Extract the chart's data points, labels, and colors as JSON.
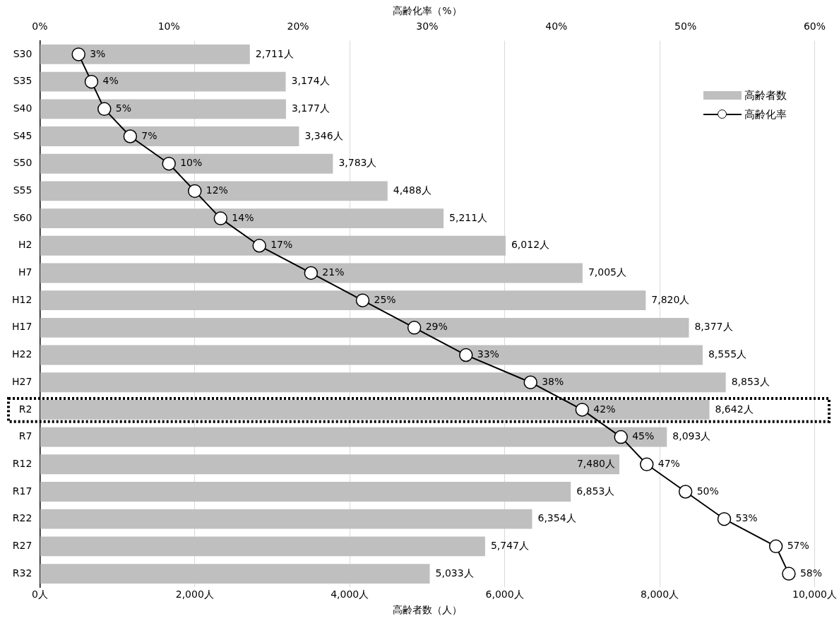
{
  "chart_data": {
    "type": "bar",
    "orientation": "horizontal",
    "xlabel": "高齢者数（人）",
    "x2label": "高齢化率（%）",
    "categories": [
      "S30",
      "S35",
      "S40",
      "S45",
      "S50",
      "S55",
      "S60",
      "H2",
      "H7",
      "H12",
      "H17",
      "H22",
      "H27",
      "R2",
      "R7",
      "R12",
      "R17",
      "R22",
      "R27",
      "R32"
    ],
    "series": [
      {
        "name": "高齢者数",
        "color": "#bfbfbf",
        "values": [
          2711,
          3174,
          3177,
          3346,
          3783,
          4488,
          5211,
          6012,
          7005,
          7820,
          8377,
          8555,
          8853,
          8642,
          8093,
          7480,
          6853,
          6354,
          5747,
          5033
        ],
        "value_labels": [
          "2,711人",
          "3,174人",
          "3,177人",
          "3,346人",
          "3,783人",
          "4,488人",
          "5,211人",
          "6,012人",
          "7,005人",
          "7,820人",
          "8,377人",
          "8,555人",
          "8,853人",
          "8,642人",
          "8,093人",
          "7,480人",
          "6,853人",
          "6,354人",
          "5,747人",
          "5,033人"
        ]
      },
      {
        "name": "高齢化率",
        "type": "line",
        "axis": "x2",
        "color": "#000000",
        "marker": "circle",
        "line_style": "solid",
        "values": [
          3,
          4,
          5,
          7,
          10,
          12,
          14,
          17,
          21,
          25,
          29,
          33,
          38,
          42,
          45,
          47,
          50,
          53,
          57,
          58
        ],
        "value_labels": [
          "3%",
          "4%",
          "5%",
          "7%",
          "10%",
          "12%",
          "14%",
          "17%",
          "21%",
          "25%",
          "29%",
          "33%",
          "38%",
          "42%",
          "45%",
          "47%",
          "50%",
          "53%",
          "57%",
          "58%"
        ]
      }
    ],
    "xlim": [
      0,
      10000
    ],
    "xticks": [
      {
        "value": 0,
        "label": "0人"
      },
      {
        "value": 2000,
        "label": "2,000人"
      },
      {
        "value": 4000,
        "label": "4,000人"
      },
      {
        "value": 6000,
        "label": "6,000人"
      },
      {
        "value": 8000,
        "label": "8,000人"
      },
      {
        "value": 10000,
        "label": "10,000人"
      }
    ],
    "x2lim": [
      0,
      60
    ],
    "x2ticks": [
      {
        "value": 0,
        "label": "0%"
      },
      {
        "value": 10,
        "label": "10%"
      },
      {
        "value": 20,
        "label": "20%"
      },
      {
        "value": 30,
        "label": "30%"
      },
      {
        "value": 40,
        "label": "40%"
      },
      {
        "value": 50,
        "label": "50%"
      },
      {
        "value": 60,
        "label": "60%"
      }
    ],
    "grid": "x",
    "legend": "top right"
  }
}
